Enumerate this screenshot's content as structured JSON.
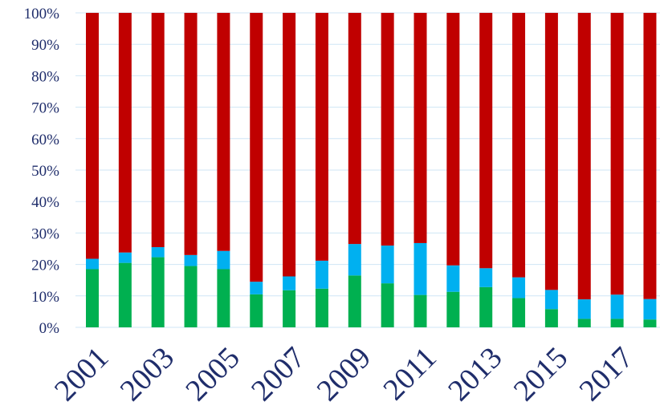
{
  "chart_data": {
    "type": "bar",
    "stacked": "percent",
    "categories": [
      "2001",
      "2002",
      "2003",
      "2004",
      "2005",
      "2006",
      "2007",
      "2008",
      "2009",
      "2010",
      "2011",
      "2012",
      "2013",
      "2014",
      "2015",
      "2016",
      "2017",
      "2018"
    ],
    "x_tick_labels": [
      "2001",
      "2003",
      "2005",
      "2007",
      "2009",
      "2011",
      "2013",
      "2015",
      "2017"
    ],
    "series": [
      {
        "color": "#00b050",
        "values": [
          18.5,
          20.5,
          22.3,
          19.5,
          18.5,
          10.5,
          11.8,
          12.3,
          16.5,
          14.0,
          10.3,
          11.3,
          12.8,
          9.3,
          5.8,
          2.7,
          2.7,
          2.5
        ]
      },
      {
        "color": "#00b0f0",
        "values": [
          3.3,
          3.3,
          3.2,
          3.5,
          5.8,
          4.0,
          4.4,
          8.9,
          10.0,
          12.0,
          16.5,
          8.4,
          6.0,
          6.6,
          6.1,
          6.2,
          7.7,
          6.5
        ]
      },
      {
        "color": "#c00000",
        "values": [
          78.2,
          76.2,
          74.5,
          77.0,
          75.7,
          85.5,
          83.8,
          78.8,
          73.5,
          74.0,
          73.2,
          80.3,
          81.2,
          84.1,
          88.1,
          91.1,
          89.6,
          91.0
        ]
      }
    ],
    "y_tick_labels": [
      "0%",
      "10%",
      "20%",
      "30%",
      "40%",
      "50%",
      "60%",
      "70%",
      "80%",
      "90%",
      "100%"
    ],
    "ylim": [
      0,
      100
    ],
    "grid": true,
    "legend": "none"
  }
}
